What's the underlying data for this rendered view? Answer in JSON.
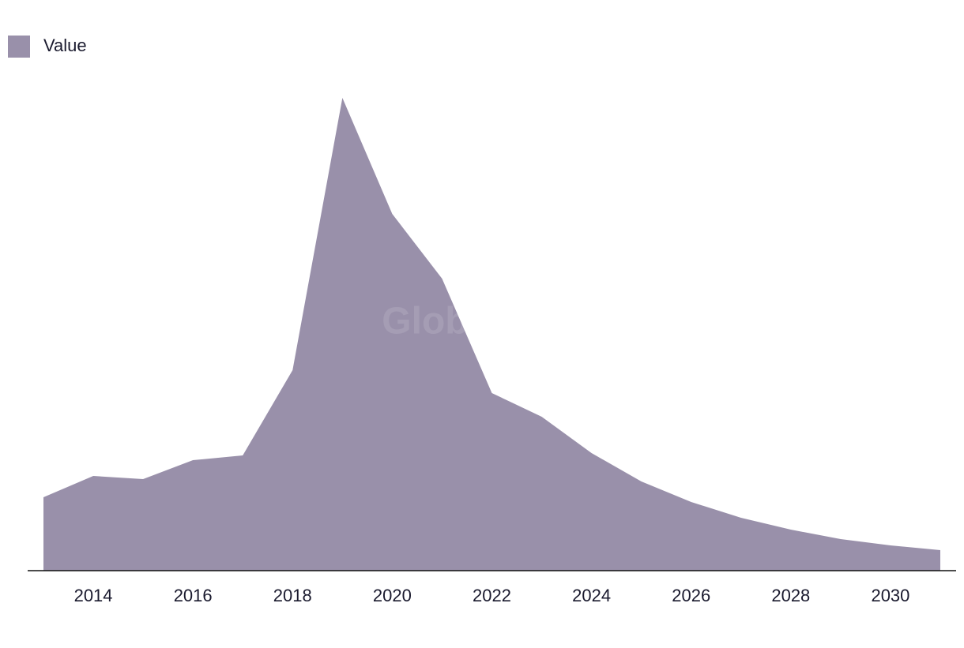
{
  "chart_data": {
    "type": "area",
    "watermark": "GlobalData",
    "x": [
      2013,
      2014,
      2015,
      2016,
      2017,
      2018,
      2019,
      2020,
      2021,
      2022,
      2023,
      2024,
      2025,
      2026,
      2027,
      2028,
      2029,
      2030,
      2031
    ],
    "series": [
      {
        "name": "Value",
        "color": "#9990aa",
        "values": [
          93,
          120,
          116,
          140,
          146,
          254,
          599,
          452,
          370,
          225,
          195,
          149,
          113,
          87,
          67,
          52,
          40,
          32,
          26
        ]
      }
    ],
    "xlim": [
      2013,
      2031
    ],
    "xticks": [
      2014,
      2016,
      2018,
      2020,
      2022,
      2024,
      2026,
      2028,
      2030
    ],
    "ylim": [
      0,
      600
    ],
    "legend": "top-left"
  }
}
